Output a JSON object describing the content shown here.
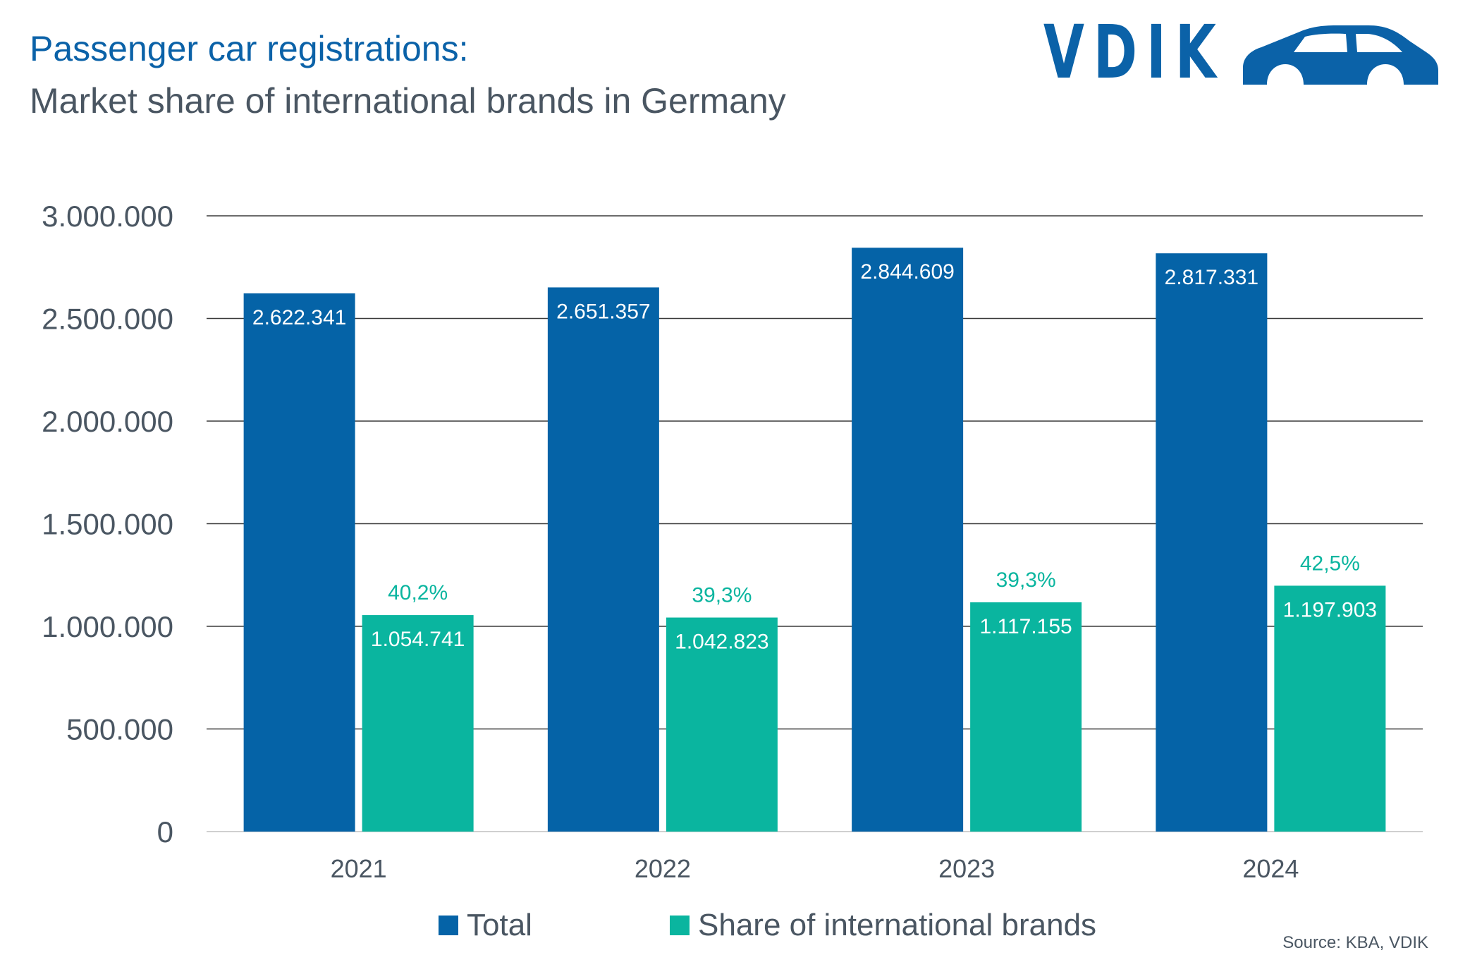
{
  "title": "Passenger car registrations:",
  "subtitle": "Market share of international brands in Germany",
  "logo": {
    "text": "VDIK",
    "icon": "car-icon"
  },
  "source": "Source: KBA, VDIK",
  "colors": {
    "total": "#0563a7",
    "share": "#0ab59f",
    "title": "#0b62a8",
    "text": "#4a5662",
    "grid": "#3a3a3a"
  },
  "chart_data": {
    "type": "bar",
    "categories": [
      "2021",
      "2022",
      "2023",
      "2024"
    ],
    "series": [
      {
        "name": "Total",
        "values": [
          2622341,
          2651357,
          2844609,
          2817331
        ],
        "labels": [
          "2.622.341",
          "2.651.357",
          "2.844.609",
          "2.817.331"
        ]
      },
      {
        "name": "Share of international brands",
        "values": [
          1054741,
          1042823,
          1117155,
          1197903
        ],
        "labels": [
          "1.054.741",
          "1.042.823",
          "1.117.155",
          "1.197.903"
        ],
        "percent_labels": [
          "40,2%",
          "39,3%",
          "39,3%",
          "42,5%"
        ]
      }
    ],
    "ylim": [
      0,
      3000000
    ],
    "yticks": [
      0,
      500000,
      1000000,
      1500000,
      2000000,
      2500000,
      3000000
    ],
    "ytick_labels": [
      "0",
      "500.000",
      "1.000.000",
      "1.500.000",
      "2.000.000",
      "2.500.000",
      "3.000.000"
    ],
    "grid": true,
    "legend_position": "bottom-center"
  }
}
